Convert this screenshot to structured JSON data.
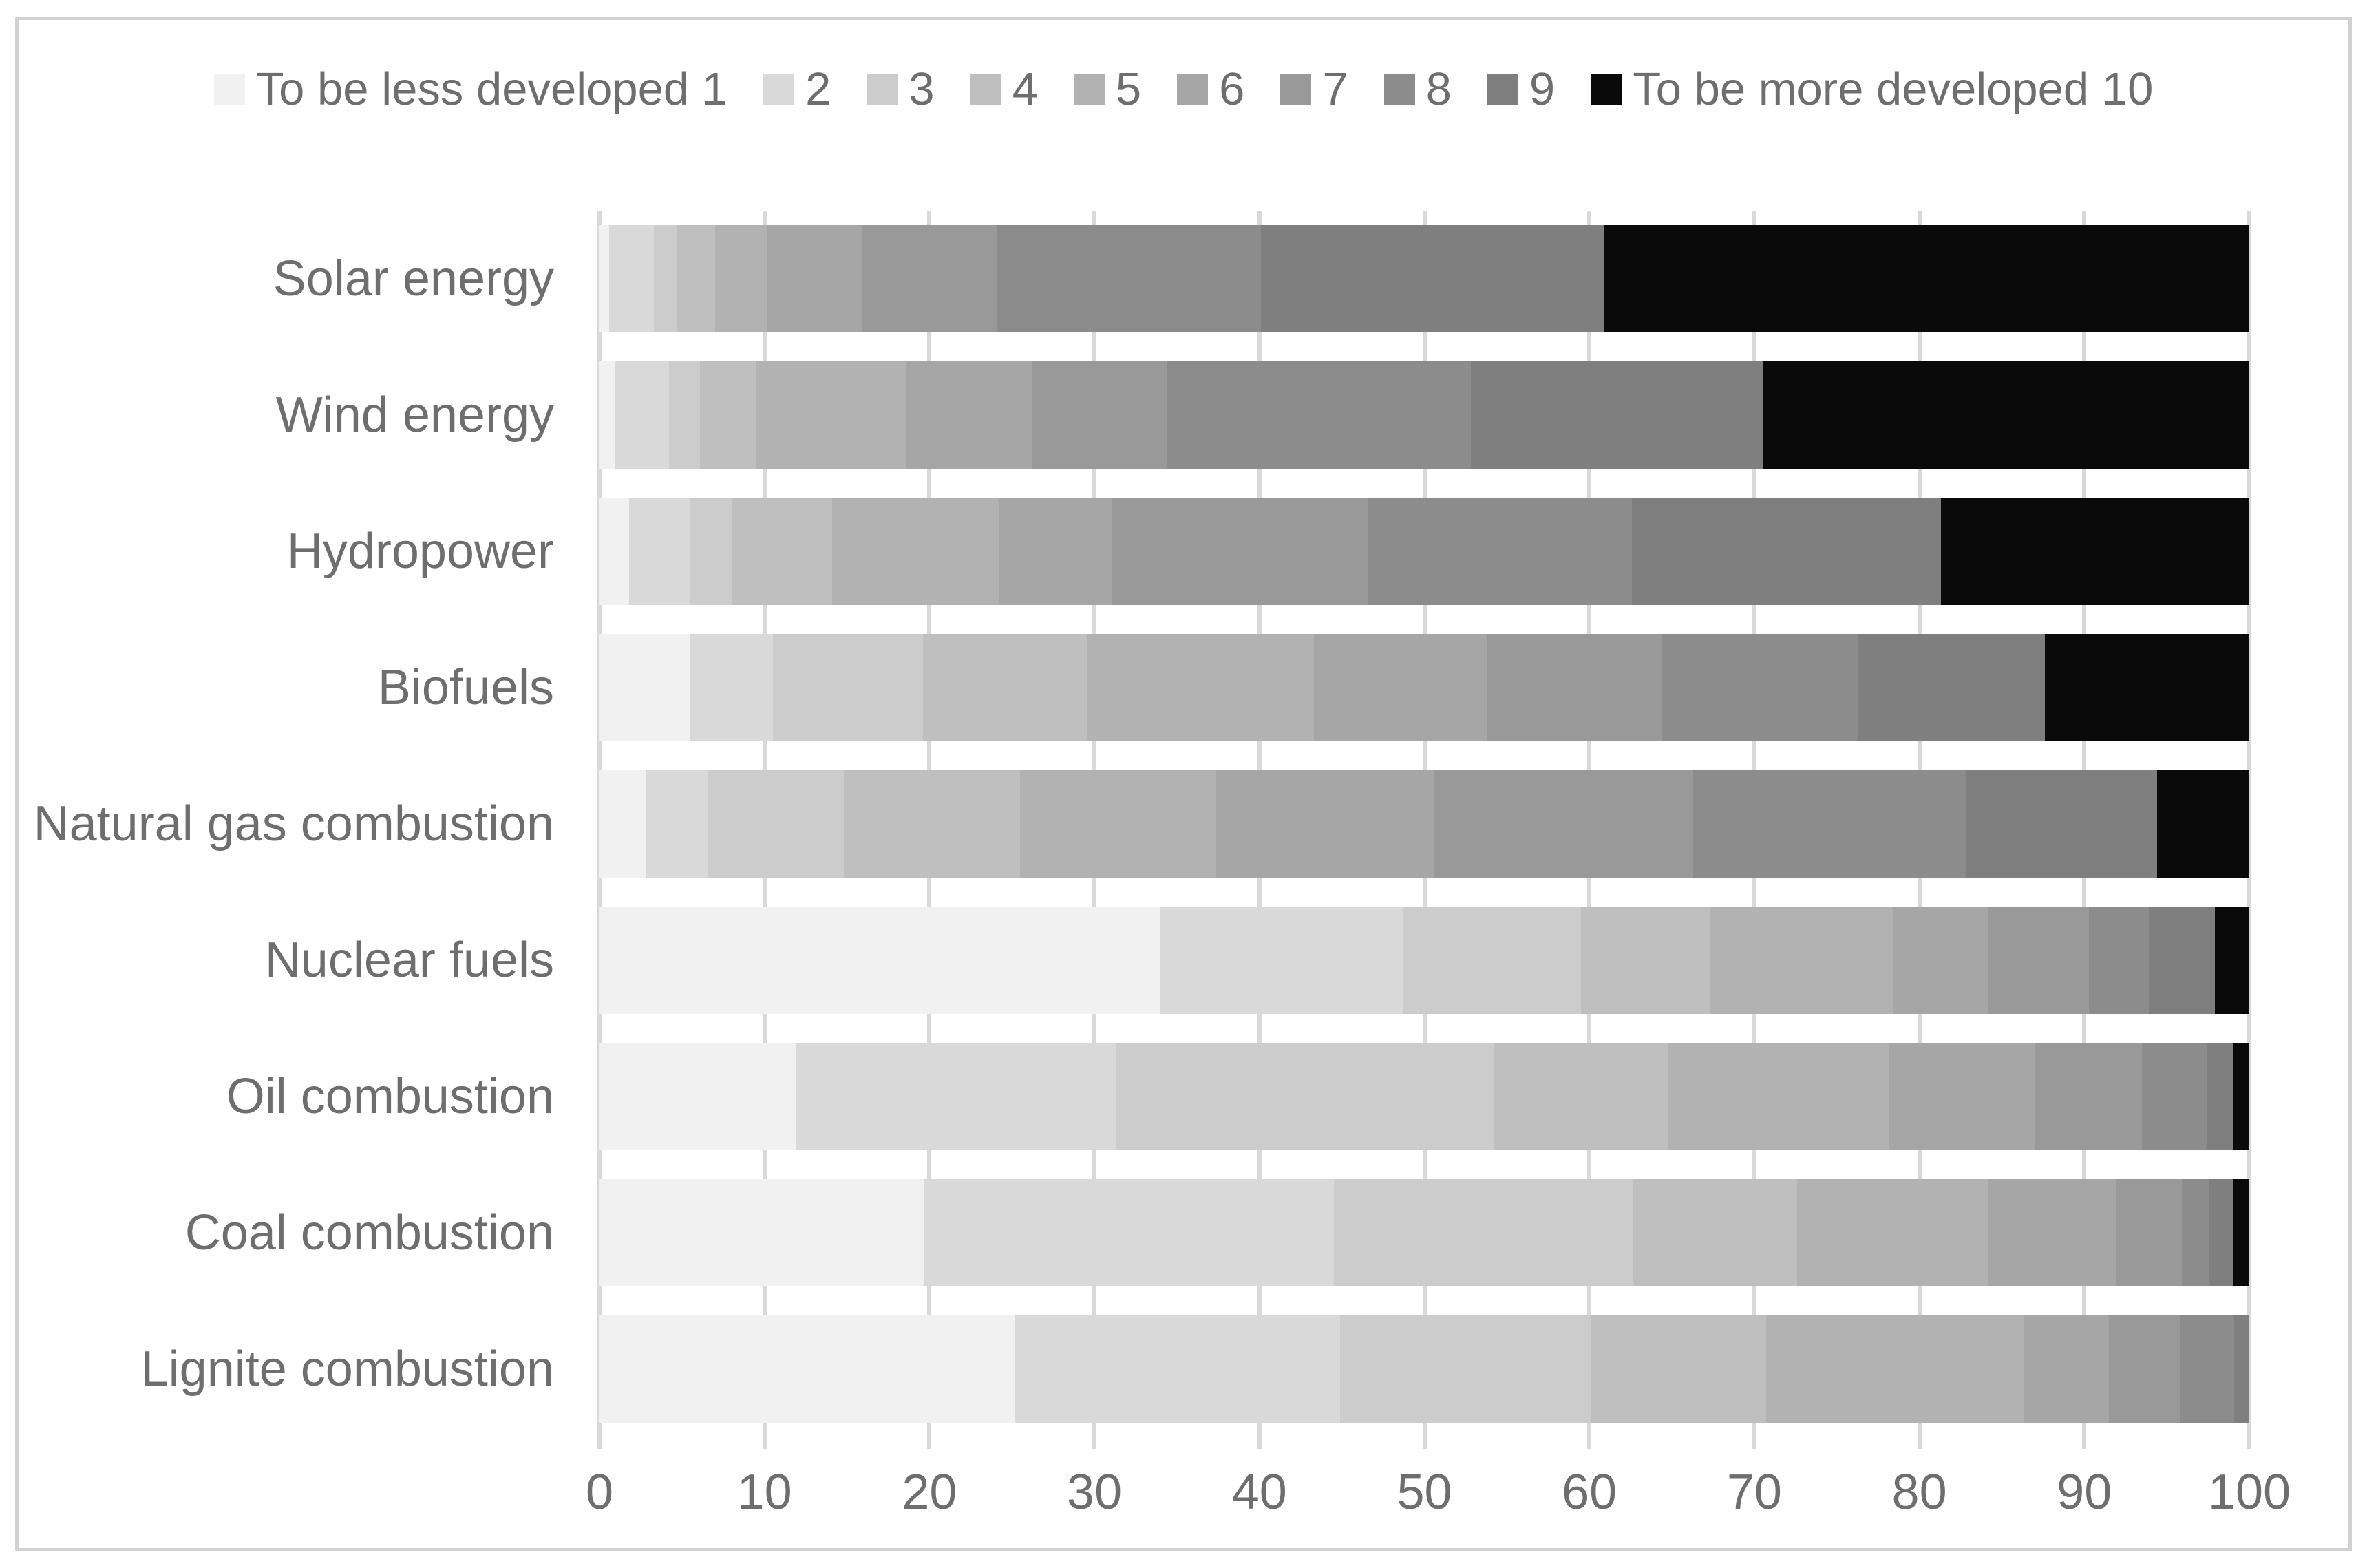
{
  "page": {
    "background": "#ffffff",
    "border_color": "#d2d2d2"
  },
  "legend": {
    "position": "top",
    "items": [
      {
        "label": "To be less developed 1",
        "color": "#f1f1f1"
      },
      {
        "label": "2",
        "color": "#d9d9d9"
      },
      {
        "label": "3",
        "color": "#cccccc"
      },
      {
        "label": "4",
        "color": "#bfbfbf"
      },
      {
        "label": "5",
        "color": "#b2b2b2"
      },
      {
        "label": "6",
        "color": "#a6a6a6"
      },
      {
        "label": "7",
        "color": "#999999"
      },
      {
        "label": "8",
        "color": "#8c8c8c"
      },
      {
        "label": "9",
        "color": "#7f7f7f"
      },
      {
        "label": "To be more developed 10",
        "color": "#0a0a0a"
      }
    ]
  },
  "chart_data": {
    "type": "bar",
    "orientation": "horizontal",
    "stacked": true,
    "grid": "vertical",
    "legend_position": "top",
    "x_axis": {
      "min": 0,
      "max": 100,
      "ticks": [
        0,
        10,
        20,
        30,
        40,
        50,
        60,
        70,
        80,
        90,
        100
      ]
    },
    "categories": [
      "Solar energy",
      "Wind energy",
      "Hydropower",
      "Biofuels",
      "Natural gas combustion",
      "Nuclear fuels",
      "Oil combustion",
      "Coal combustion",
      "Lignite combustion"
    ],
    "series": [
      {
        "name": "To be less developed 1",
        "color": "#f1f1f1",
        "values": [
          0.6,
          0.9,
          1.8,
          5.5,
          2.8,
          34.0,
          11.9,
          19.7,
          25.2
        ]
      },
      {
        "name": "2",
        "color": "#d9d9d9",
        "values": [
          2.7,
          3.3,
          3.7,
          5.0,
          3.8,
          14.7,
          19.4,
          24.8,
          19.7
        ]
      },
      {
        "name": "3",
        "color": "#cccccc",
        "values": [
          1.4,
          1.9,
          2.5,
          9.1,
          8.2,
          10.8,
          22.9,
          18.1,
          15.2
        ]
      },
      {
        "name": "4",
        "color": "#bfbfbf",
        "values": [
          2.3,
          3.4,
          6.1,
          10.0,
          10.7,
          7.8,
          10.6,
          10.0,
          10.6
        ]
      },
      {
        "name": "5",
        "color": "#b2b2b2",
        "values": [
          3.2,
          9.1,
          10.1,
          13.7,
          11.9,
          11.1,
          13.4,
          11.6,
          15.6
        ]
      },
      {
        "name": "6",
        "color": "#a6a6a6",
        "values": [
          5.7,
          7.6,
          6.9,
          10.5,
          13.2,
          5.8,
          8.8,
          7.7,
          5.2
        ]
      },
      {
        "name": "7",
        "color": "#999999",
        "values": [
          8.2,
          8.2,
          15.5,
          10.6,
          15.7,
          6.1,
          6.5,
          4.0,
          4.3
        ]
      },
      {
        "name": "8",
        "color": "#8c8c8c",
        "values": [
          16.0,
          18.4,
          16.0,
          11.9,
          16.5,
          3.6,
          3.9,
          1.7,
          3.3
        ]
      },
      {
        "name": "9",
        "color": "#7f7f7f",
        "values": [
          20.8,
          17.7,
          18.7,
          11.3,
          11.6,
          4.0,
          1.6,
          1.4,
          0.9
        ]
      },
      {
        "name": "To be more developed 10",
        "color": "#0a0a0a",
        "values": [
          39.1,
          29.5,
          18.7,
          12.4,
          5.6,
          2.1,
          1.0,
          1.0,
          0.0
        ]
      }
    ],
    "title": "",
    "xlabel": "",
    "ylabel": ""
  },
  "colors": {
    "text": "#6e6e6e",
    "gridline": "#d9d9d9"
  }
}
